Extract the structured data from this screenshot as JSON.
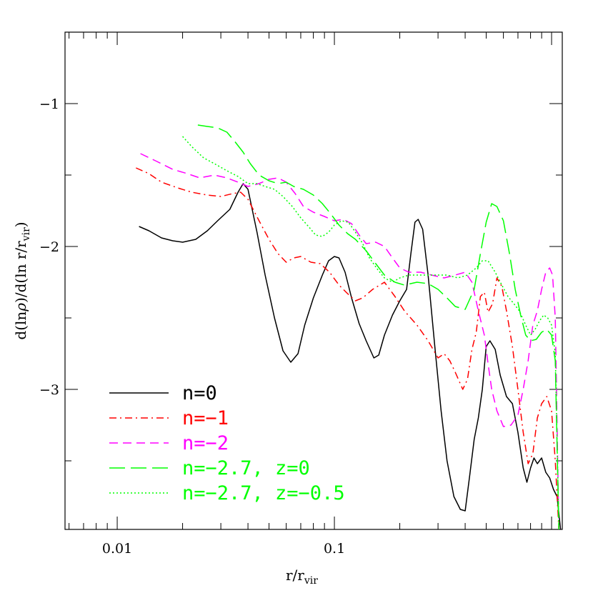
{
  "chart_data": {
    "type": "line",
    "xlabel": "r/r",
    "xlabel_sub": "vir",
    "ylabel_parts": [
      "d(ln",
      "ρ",
      ")/d(ln r/r",
      "vir",
      ")"
    ],
    "xscale": "log",
    "xlim": [
      0.00575,
      1.12
    ],
    "ylim": [
      -3.98,
      -0.5
    ],
    "x_ticks": [
      {
        "value": 0.01,
        "label": "0.01"
      },
      {
        "value": 0.1,
        "label": "0.1"
      }
    ],
    "y_ticks": [
      {
        "value": -1,
        "label": "−1"
      },
      {
        "value": -2,
        "label": "−2"
      },
      {
        "value": -3,
        "label": "−3"
      }
    ],
    "legend_placement": "bottom-left",
    "series": [
      {
        "name": "n=0",
        "color": "#000000",
        "dash": "solid",
        "points": [
          [
            0.0126,
            -1.86
          ],
          [
            0.014,
            -1.89
          ],
          [
            0.016,
            -1.94
          ],
          [
            0.018,
            -1.96
          ],
          [
            0.02,
            -1.97
          ],
          [
            0.023,
            -1.95
          ],
          [
            0.026,
            -1.89
          ],
          [
            0.029,
            -1.82
          ],
          [
            0.033,
            -1.74
          ],
          [
            0.036,
            -1.62
          ],
          [
            0.038,
            -1.56
          ],
          [
            0.04,
            -1.6
          ],
          [
            0.044,
            -1.9
          ],
          [
            0.048,
            -2.2
          ],
          [
            0.053,
            -2.5
          ],
          [
            0.058,
            -2.73
          ],
          [
            0.063,
            -2.81
          ],
          [
            0.068,
            -2.75
          ],
          [
            0.073,
            -2.55
          ],
          [
            0.08,
            -2.36
          ],
          [
            0.088,
            -2.2
          ],
          [
            0.094,
            -2.1
          ],
          [
            0.1,
            -2.07
          ],
          [
            0.105,
            -2.08
          ],
          [
            0.112,
            -2.18
          ],
          [
            0.12,
            -2.36
          ],
          [
            0.13,
            -2.54
          ],
          [
            0.14,
            -2.66
          ],
          [
            0.152,
            -2.78
          ],
          [
            0.16,
            -2.76
          ],
          [
            0.17,
            -2.62
          ],
          [
            0.185,
            -2.48
          ],
          [
            0.2,
            -2.38
          ],
          [
            0.215,
            -2.3
          ],
          [
            0.225,
            -2.05
          ],
          [
            0.235,
            -1.83
          ],
          [
            0.243,
            -1.81
          ],
          [
            0.255,
            -1.88
          ],
          [
            0.27,
            -2.2
          ],
          [
            0.29,
            -2.7
          ],
          [
            0.31,
            -3.15
          ],
          [
            0.33,
            -3.5
          ],
          [
            0.355,
            -3.75
          ],
          [
            0.38,
            -3.84
          ],
          [
            0.4,
            -3.85
          ],
          [
            0.42,
            -3.6
          ],
          [
            0.44,
            -3.35
          ],
          [
            0.46,
            -3.2
          ],
          [
            0.48,
            -3.0
          ],
          [
            0.5,
            -2.7
          ],
          [
            0.52,
            -2.66
          ],
          [
            0.55,
            -2.72
          ],
          [
            0.58,
            -2.9
          ],
          [
            0.62,
            -3.05
          ],
          [
            0.66,
            -3.1
          ],
          [
            0.7,
            -3.3
          ],
          [
            0.74,
            -3.55
          ],
          [
            0.77,
            -3.65
          ],
          [
            0.8,
            -3.55
          ],
          [
            0.83,
            -3.48
          ],
          [
            0.86,
            -3.52
          ],
          [
            0.9,
            -3.48
          ],
          [
            0.94,
            -3.58
          ],
          [
            0.98,
            -3.62
          ],
          [
            1.02,
            -3.7
          ],
          [
            1.06,
            -3.75
          ],
          [
            1.1,
            -3.98
          ]
        ]
      },
      {
        "name": "n=−1",
        "color": "#ff0000",
        "dash": "dashdot",
        "points": [
          [
            0.0122,
            -1.45
          ],
          [
            0.014,
            -1.49
          ],
          [
            0.016,
            -1.55
          ],
          [
            0.019,
            -1.59
          ],
          [
            0.022,
            -1.62
          ],
          [
            0.026,
            -1.64
          ],
          [
            0.03,
            -1.65
          ],
          [
            0.034,
            -1.63
          ],
          [
            0.037,
            -1.62
          ],
          [
            0.04,
            -1.67
          ],
          [
            0.045,
            -1.82
          ],
          [
            0.05,
            -1.95
          ],
          [
            0.055,
            -2.05
          ],
          [
            0.06,
            -2.11
          ],
          [
            0.065,
            -2.08
          ],
          [
            0.07,
            -2.07
          ],
          [
            0.078,
            -2.11
          ],
          [
            0.086,
            -2.12
          ],
          [
            0.095,
            -2.18
          ],
          [
            0.105,
            -2.27
          ],
          [
            0.115,
            -2.33
          ],
          [
            0.125,
            -2.38
          ],
          [
            0.135,
            -2.36
          ],
          [
            0.15,
            -2.3
          ],
          [
            0.17,
            -2.25
          ],
          [
            0.19,
            -2.35
          ],
          [
            0.21,
            -2.45
          ],
          [
            0.24,
            -2.55
          ],
          [
            0.27,
            -2.66
          ],
          [
            0.3,
            -2.78
          ],
          [
            0.32,
            -2.75
          ],
          [
            0.34,
            -2.8
          ],
          [
            0.36,
            -2.88
          ],
          [
            0.39,
            -3.0
          ],
          [
            0.41,
            -2.93
          ],
          [
            0.43,
            -2.72
          ],
          [
            0.45,
            -2.6
          ],
          [
            0.47,
            -2.35
          ],
          [
            0.49,
            -2.32
          ],
          [
            0.51,
            -2.46
          ],
          [
            0.535,
            -2.4
          ],
          [
            0.56,
            -2.22
          ],
          [
            0.59,
            -2.28
          ],
          [
            0.62,
            -2.45
          ],
          [
            0.66,
            -2.7
          ],
          [
            0.7,
            -3.0
          ],
          [
            0.74,
            -3.3
          ],
          [
            0.78,
            -3.52
          ],
          [
            0.82,
            -3.45
          ],
          [
            0.86,
            -3.2
          ],
          [
            0.9,
            -3.1
          ],
          [
            0.95,
            -3.05
          ],
          [
            1.0,
            -3.15
          ],
          [
            1.04,
            -3.5
          ],
          [
            1.08,
            -3.98
          ]
        ]
      },
      {
        "name": "n=−2",
        "color": "#ff00ff",
        "dash": "dashed",
        "points": [
          [
            0.0128,
            -1.35
          ],
          [
            0.015,
            -1.4
          ],
          [
            0.018,
            -1.46
          ],
          [
            0.021,
            -1.49
          ],
          [
            0.024,
            -1.52
          ],
          [
            0.028,
            -1.5
          ],
          [
            0.032,
            -1.52
          ],
          [
            0.036,
            -1.55
          ],
          [
            0.04,
            -1.58
          ],
          [
            0.045,
            -1.56
          ],
          [
            0.05,
            -1.53
          ],
          [
            0.055,
            -1.52
          ],
          [
            0.06,
            -1.55
          ],
          [
            0.066,
            -1.63
          ],
          [
            0.072,
            -1.72
          ],
          [
            0.08,
            -1.76
          ],
          [
            0.09,
            -1.79
          ],
          [
            0.1,
            -1.82
          ],
          [
            0.11,
            -1.81
          ],
          [
            0.12,
            -1.84
          ],
          [
            0.13,
            -1.92
          ],
          [
            0.14,
            -1.98
          ],
          [
            0.155,
            -1.97
          ],
          [
            0.17,
            -2.0
          ],
          [
            0.185,
            -2.08
          ],
          [
            0.2,
            -2.15
          ],
          [
            0.22,
            -2.18
          ],
          [
            0.25,
            -2.18
          ],
          [
            0.28,
            -2.2
          ],
          [
            0.32,
            -2.22
          ],
          [
            0.36,
            -2.2
          ],
          [
            0.4,
            -2.18
          ],
          [
            0.43,
            -2.25
          ],
          [
            0.46,
            -2.45
          ],
          [
            0.49,
            -2.62
          ],
          [
            0.51,
            -2.82
          ],
          [
            0.53,
            -3.0
          ],
          [
            0.56,
            -3.15
          ],
          [
            0.6,
            -3.26
          ],
          [
            0.65,
            -3.25
          ],
          [
            0.7,
            -3.18
          ],
          [
            0.74,
            -3.0
          ],
          [
            0.78,
            -2.8
          ],
          [
            0.82,
            -2.55
          ],
          [
            0.86,
            -2.45
          ],
          [
            0.9,
            -2.3
          ],
          [
            0.94,
            -2.18
          ],
          [
            0.98,
            -2.15
          ],
          [
            1.01,
            -2.2
          ],
          [
            1.04,
            -2.5
          ],
          [
            1.08,
            -3.98
          ]
        ]
      },
      {
        "name": "n=−2.7,  z=0",
        "color": "#00ff00",
        "dash": "longdash",
        "points": [
          [
            0.0235,
            -1.15
          ],
          [
            0.026,
            -1.16
          ],
          [
            0.029,
            -1.17
          ],
          [
            0.032,
            -1.2
          ],
          [
            0.035,
            -1.27
          ],
          [
            0.038,
            -1.34
          ],
          [
            0.041,
            -1.42
          ],
          [
            0.045,
            -1.5
          ],
          [
            0.05,
            -1.54
          ],
          [
            0.055,
            -1.56
          ],
          [
            0.06,
            -1.55
          ],
          [
            0.065,
            -1.58
          ],
          [
            0.072,
            -1.6
          ],
          [
            0.08,
            -1.64
          ],
          [
            0.088,
            -1.7
          ],
          [
            0.096,
            -1.77
          ],
          [
            0.105,
            -1.85
          ],
          [
            0.115,
            -1.91
          ],
          [
            0.125,
            -1.95
          ],
          [
            0.14,
            -2.03
          ],
          [
            0.155,
            -2.12
          ],
          [
            0.17,
            -2.2
          ],
          [
            0.19,
            -2.25
          ],
          [
            0.21,
            -2.27
          ],
          [
            0.24,
            -2.25
          ],
          [
            0.27,
            -2.26
          ],
          [
            0.3,
            -2.3
          ],
          [
            0.33,
            -2.36
          ],
          [
            0.36,
            -2.42
          ],
          [
            0.4,
            -2.44
          ],
          [
            0.44,
            -2.3
          ],
          [
            0.47,
            -2.05
          ],
          [
            0.5,
            -1.83
          ],
          [
            0.53,
            -1.7
          ],
          [
            0.56,
            -1.72
          ],
          [
            0.6,
            -1.82
          ],
          [
            0.64,
            -2.05
          ],
          [
            0.68,
            -2.3
          ],
          [
            0.72,
            -2.48
          ],
          [
            0.76,
            -2.62
          ],
          [
            0.8,
            -2.66
          ],
          [
            0.85,
            -2.65
          ],
          [
            0.9,
            -2.6
          ],
          [
            0.95,
            -2.58
          ],
          [
            1.0,
            -2.62
          ],
          [
            1.04,
            -2.8
          ],
          [
            1.08,
            -3.98
          ]
        ]
      },
      {
        "name": "n=−2.7,  z=−0.5",
        "color": "#00ff00",
        "dash": "dotted",
        "points": [
          [
            0.02,
            -1.23
          ],
          [
            0.022,
            -1.3
          ],
          [
            0.025,
            -1.38
          ],
          [
            0.028,
            -1.42
          ],
          [
            0.032,
            -1.47
          ],
          [
            0.036,
            -1.51
          ],
          [
            0.04,
            -1.56
          ],
          [
            0.044,
            -1.56
          ],
          [
            0.048,
            -1.58
          ],
          [
            0.053,
            -1.6
          ],
          [
            0.058,
            -1.65
          ],
          [
            0.064,
            -1.72
          ],
          [
            0.07,
            -1.8
          ],
          [
            0.076,
            -1.86
          ],
          [
            0.082,
            -1.92
          ],
          [
            0.088,
            -1.93
          ],
          [
            0.094,
            -1.9
          ],
          [
            0.1,
            -1.85
          ],
          [
            0.108,
            -1.82
          ],
          [
            0.116,
            -1.83
          ],
          [
            0.125,
            -1.9
          ],
          [
            0.135,
            -1.98
          ],
          [
            0.145,
            -2.08
          ],
          [
            0.158,
            -2.16
          ],
          [
            0.17,
            -2.22
          ],
          [
            0.185,
            -2.25
          ],
          [
            0.2,
            -2.22
          ],
          [
            0.22,
            -2.2
          ],
          [
            0.25,
            -2.2
          ],
          [
            0.29,
            -2.2
          ],
          [
            0.33,
            -2.2
          ],
          [
            0.37,
            -2.22
          ],
          [
            0.41,
            -2.2
          ],
          [
            0.45,
            -2.15
          ],
          [
            0.48,
            -2.1
          ],
          [
            0.51,
            -2.1
          ],
          [
            0.55,
            -2.18
          ],
          [
            0.59,
            -2.27
          ],
          [
            0.63,
            -2.35
          ],
          [
            0.67,
            -2.4
          ],
          [
            0.71,
            -2.45
          ],
          [
            0.76,
            -2.55
          ],
          [
            0.8,
            -2.62
          ],
          [
            0.84,
            -2.58
          ],
          [
            0.88,
            -2.52
          ],
          [
            0.92,
            -2.48
          ],
          [
            0.96,
            -2.5
          ],
          [
            1.0,
            -2.55
          ],
          [
            1.04,
            -2.75
          ],
          [
            1.08,
            -3.98
          ]
        ]
      }
    ]
  }
}
